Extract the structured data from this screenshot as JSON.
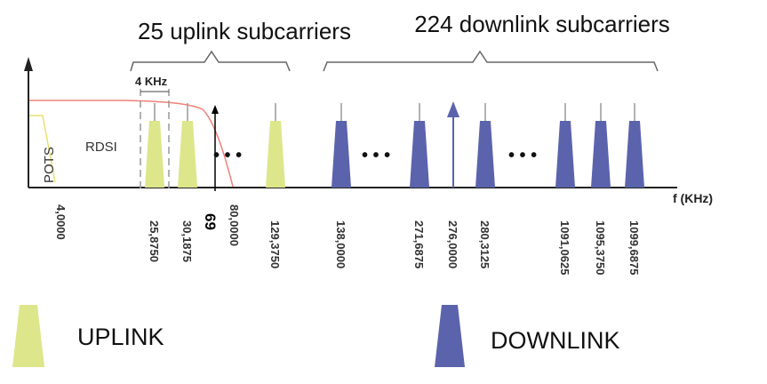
{
  "diagram": {
    "uplink_group_label": "25 uplink subcarriers",
    "downlink_group_label": "224 downlink subcarriers",
    "band_label": "4 KHz",
    "pots_label": "POTS",
    "rdsi_label": "RDSI",
    "axis_label": "f (KHz)",
    "marker_label": "69",
    "ellipsis": "• • •",
    "colors": {
      "uplink": "#dde68a",
      "downlink": "#5b63ad",
      "curve": "#f08078",
      "pots_curve": "#e8e070",
      "axis": "#222222",
      "tick": "#999999"
    }
  },
  "ticks": [
    "4,0000",
    "25,8750",
    "30,1875",
    "80,0000",
    "129,3750",
    "138,0000",
    "271,6875",
    "276,0000",
    "280,3125",
    "1091,0625",
    "1095,3750",
    "1099,6875"
  ],
  "legend": {
    "uplink_label": "UPLINK",
    "downlink_label": "DOWNLINK"
  }
}
